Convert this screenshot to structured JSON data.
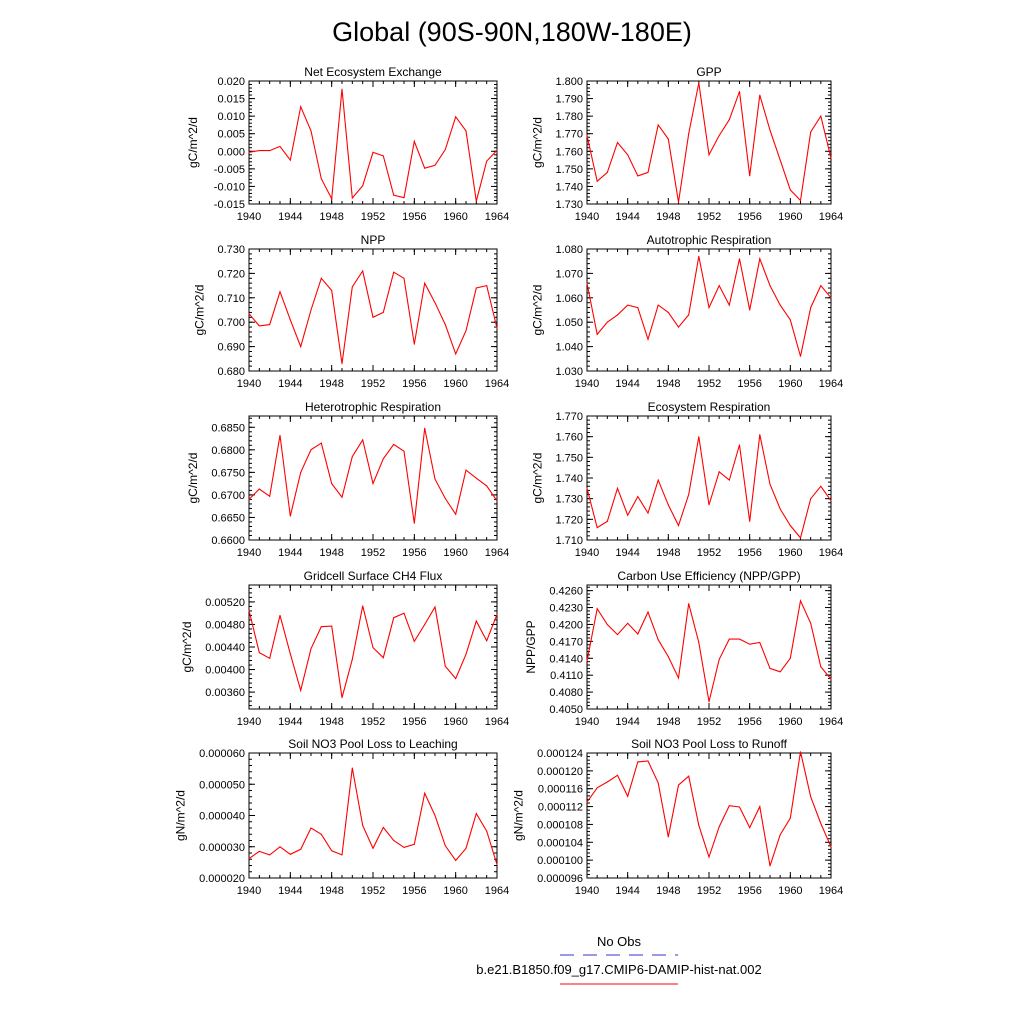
{
  "figure_title": "Global (90S-90N,180W-180E)",
  "legend": {
    "obs_label": "No Obs",
    "obs_color": "#3333cc",
    "model_label": "b.e21.B1850.f09_g17.CMIP6-DAMIP-hist-nat.002",
    "model_color": "#ff0000"
  },
  "chart_data": [
    {
      "type": "line",
      "title": "Net Ecosystem Exchange",
      "xlabel": "",
      "ylabel": "gC/m^2/d",
      "xlim": [
        1940,
        1964
      ],
      "ylim": [
        -0.015,
        0.02
      ],
      "yticks": [
        "-0.015",
        "-0.010",
        "-0.005",
        "0.000",
        "0.005",
        "0.010",
        "0.015",
        "0.020"
      ],
      "xticks": [
        "1940",
        "1944",
        "1948",
        "1952",
        "1956",
        "1960",
        "1964"
      ],
      "series": [
        {
          "color": "#ff0000",
          "x": [
            1940,
            1941,
            1942,
            1943,
            1944,
            1945,
            1946,
            1947,
            1948,
            1949,
            1950,
            1951,
            1952,
            1953,
            1954,
            1955,
            1956,
            1957,
            1958,
            1959,
            1960,
            1961,
            1962,
            1963,
            1964
          ],
          "values": [
            -0.0003,
            0.0002,
            0.0002,
            0.0014,
            -0.0025,
            0.0127,
            0.0058,
            -0.0078,
            -0.0135,
            0.0177,
            -0.0133,
            -0.0098,
            -0.0003,
            -0.0013,
            -0.0125,
            -0.0132,
            0.0028,
            -0.0048,
            -0.004,
            0.0005,
            0.0098,
            0.0058,
            -0.0142,
            -0.0028,
            0.0003
          ]
        }
      ]
    },
    {
      "type": "line",
      "title": "GPP",
      "xlabel": "",
      "ylabel": "gC/m^2/d",
      "xlim": [
        1940,
        1964
      ],
      "ylim": [
        1.73,
        1.8
      ],
      "yticks": [
        "1.730",
        "1.740",
        "1.750",
        "1.760",
        "1.770",
        "1.780",
        "1.790",
        "1.800"
      ],
      "xticks": [
        "1940",
        "1944",
        "1948",
        "1952",
        "1956",
        "1960",
        "1964"
      ],
      "series": [
        {
          "color": "#ff0000",
          "x": [
            1940,
            1941,
            1942,
            1943,
            1944,
            1945,
            1946,
            1947,
            1948,
            1949,
            1950,
            1951,
            1952,
            1953,
            1954,
            1955,
            1956,
            1957,
            1958,
            1959,
            1960,
            1961,
            1962,
            1963,
            1964
          ],
          "values": [
            1.769,
            1.743,
            1.748,
            1.765,
            1.758,
            1.746,
            1.748,
            1.775,
            1.767,
            1.731,
            1.77,
            1.799,
            1.758,
            1.769,
            1.778,
            1.794,
            1.746,
            1.792,
            1.772,
            1.755,
            1.738,
            1.732,
            1.771,
            1.78,
            1.756
          ]
        }
      ]
    },
    {
      "type": "line",
      "title": "NPP",
      "xlabel": "",
      "ylabel": "gC/m^2/d",
      "xlim": [
        1940,
        1964
      ],
      "ylim": [
        0.68,
        0.73
      ],
      "yticks": [
        "0.680",
        "0.690",
        "0.700",
        "0.710",
        "0.720",
        "0.730"
      ],
      "xticks": [
        "1940",
        "1944",
        "1948",
        "1952",
        "1956",
        "1960",
        "1964"
      ],
      "series": [
        {
          "color": "#ff0000",
          "x": [
            1940,
            1941,
            1942,
            1943,
            1944,
            1945,
            1946,
            1947,
            1948,
            1949,
            1950,
            1951,
            1952,
            1953,
            1954,
            1955,
            1956,
            1957,
            1958,
            1959,
            1960,
            1961,
            1962,
            1963,
            1964
          ],
          "values": [
            0.7035,
            0.6985,
            0.699,
            0.7125,
            0.701,
            0.69,
            0.705,
            0.718,
            0.713,
            0.683,
            0.7145,
            0.721,
            0.702,
            0.704,
            0.7205,
            0.718,
            0.691,
            0.716,
            0.708,
            0.699,
            0.687,
            0.6965,
            0.714,
            0.715,
            0.6975
          ]
        }
      ]
    },
    {
      "type": "line",
      "title": "Autotrophic Respiration",
      "xlabel": "",
      "ylabel": "gC/m^2/d",
      "xlim": [
        1940,
        1964
      ],
      "ylim": [
        1.03,
        1.08
      ],
      "yticks": [
        "1.030",
        "1.040",
        "1.050",
        "1.060",
        "1.070",
        "1.080"
      ],
      "xticks": [
        "1940",
        "1944",
        "1948",
        "1952",
        "1956",
        "1960",
        "1964"
      ],
      "series": [
        {
          "color": "#ff0000",
          "x": [
            1940,
            1941,
            1942,
            1943,
            1944,
            1945,
            1946,
            1947,
            1948,
            1949,
            1950,
            1951,
            1952,
            1953,
            1954,
            1955,
            1956,
            1957,
            1958,
            1959,
            1960,
            1961,
            1962,
            1963,
            1964
          ],
          "values": [
            1.066,
            1.045,
            1.05,
            1.053,
            1.057,
            1.056,
            1.043,
            1.057,
            1.054,
            1.048,
            1.053,
            1.077,
            1.056,
            1.065,
            1.057,
            1.076,
            1.055,
            1.076,
            1.065,
            1.057,
            1.051,
            1.036,
            1.056,
            1.065,
            1.06
          ]
        }
      ]
    },
    {
      "type": "line",
      "title": "Heterotrophic Respiration",
      "xlabel": "",
      "ylabel": "gC/m^2/d",
      "xlim": [
        1940,
        1964
      ],
      "ylim": [
        0.66,
        0.6875
      ],
      "yticks": [
        "0.6600",
        "0.6650",
        "0.6700",
        "0.6750",
        "0.6800",
        "0.6850"
      ],
      "xticks": [
        "1940",
        "1944",
        "1948",
        "1952",
        "1956",
        "1960",
        "1964"
      ],
      "series": [
        {
          "color": "#ff0000",
          "x": [
            1940,
            1941,
            1942,
            1943,
            1944,
            1945,
            1946,
            1947,
            1948,
            1949,
            1950,
            1951,
            1952,
            1953,
            1954,
            1955,
            1956,
            1957,
            1958,
            1959,
            1960,
            1961,
            1962,
            1963,
            1964
          ],
          "values": [
            0.669,
            0.6713,
            0.6697,
            0.6832,
            0.6653,
            0.675,
            0.68,
            0.6815,
            0.6725,
            0.6695,
            0.6785,
            0.6822,
            0.6725,
            0.678,
            0.6812,
            0.6797,
            0.6637,
            0.6848,
            0.6735,
            0.6692,
            0.6657,
            0.6755,
            0.6737,
            0.672,
            0.6687
          ]
        }
      ]
    },
    {
      "type": "line",
      "title": "Ecosystem Respiration",
      "xlabel": "",
      "ylabel": "gC/m^2/d",
      "xlim": [
        1940,
        1964
      ],
      "ylim": [
        1.71,
        1.77
      ],
      "yticks": [
        "1.710",
        "1.720",
        "1.730",
        "1.740",
        "1.750",
        "1.760",
        "1.770"
      ],
      "xticks": [
        "1940",
        "1944",
        "1948",
        "1952",
        "1956",
        "1960",
        "1964"
      ],
      "series": [
        {
          "color": "#ff0000",
          "x": [
            1940,
            1941,
            1942,
            1943,
            1944,
            1945,
            1946,
            1947,
            1948,
            1949,
            1950,
            1951,
            1952,
            1953,
            1954,
            1955,
            1956,
            1957,
            1958,
            1959,
            1960,
            1961,
            1962,
            1963,
            1964
          ],
          "values": [
            1.735,
            1.716,
            1.719,
            1.735,
            1.722,
            1.731,
            1.723,
            1.739,
            1.727,
            1.717,
            1.732,
            1.76,
            1.727,
            1.743,
            1.739,
            1.756,
            1.719,
            1.761,
            1.737,
            1.725,
            1.717,
            1.711,
            1.73,
            1.736,
            1.729
          ]
        }
      ]
    },
    {
      "type": "line",
      "title": "Gridcell Surface CH4 Flux",
      "xlabel": "",
      "ylabel": "gC/m^2/d",
      "xlim": [
        1940,
        1964
      ],
      "ylim": [
        0.0033,
        0.0055
      ],
      "yticks": [
        "0.00360",
        "0.00400",
        "0.00440",
        "0.00480",
        "0.00520"
      ],
      "xticks": [
        "1940",
        "1944",
        "1948",
        "1952",
        "1956",
        "1960",
        "1964"
      ],
      "series": [
        {
          "color": "#ff0000",
          "x": [
            1940,
            1941,
            1942,
            1943,
            1944,
            1945,
            1946,
            1947,
            1948,
            1949,
            1950,
            1951,
            1952,
            1953,
            1954,
            1955,
            1956,
            1957,
            1958,
            1959,
            1960,
            1961,
            1962,
            1963,
            1964
          ],
          "values": [
            0.00505,
            0.0043,
            0.0042,
            0.00496,
            0.00428,
            0.00363,
            0.00437,
            0.00476,
            0.00477,
            0.0035,
            0.00418,
            0.00513,
            0.00439,
            0.00421,
            0.00492,
            0.005,
            0.0045,
            0.0048,
            0.00511,
            0.00406,
            0.00384,
            0.00427,
            0.00486,
            0.00451,
            0.00498
          ]
        }
      ]
    },
    {
      "type": "line",
      "title": "Carbon Use Efficiency (NPP/GPP)",
      "xlabel": "",
      "ylabel": "NPP/GPP",
      "xlim": [
        1940,
        1964
      ],
      "ylim": [
        0.405,
        0.427
      ],
      "yticks": [
        "0.4050",
        "0.4080",
        "0.4110",
        "0.4140",
        "0.4170",
        "0.4200",
        "0.4230",
        "0.4260"
      ],
      "xticks": [
        "1940",
        "1944",
        "1948",
        "1952",
        "1956",
        "1960",
        "1964"
      ],
      "series": [
        {
          "color": "#ff0000",
          "x": [
            1940,
            1941,
            1942,
            1943,
            1944,
            1945,
            1946,
            1947,
            1948,
            1949,
            1950,
            1951,
            1952,
            1953,
            1954,
            1955,
            1956,
            1957,
            1958,
            1959,
            1960,
            1961,
            1962,
            1963,
            1964
          ],
          "values": [
            0.4135,
            0.4228,
            0.42,
            0.4182,
            0.4202,
            0.4183,
            0.4222,
            0.4173,
            0.4143,
            0.4105,
            0.4237,
            0.4168,
            0.4063,
            0.4138,
            0.4174,
            0.4174,
            0.4165,
            0.4168,
            0.4122,
            0.4116,
            0.414,
            0.4242,
            0.4202,
            0.4125,
            0.4103
          ]
        }
      ]
    },
    {
      "type": "line",
      "title": "Soil NO3 Pool Loss to Leaching",
      "xlabel": "",
      "ylabel": "gN/m^2/d",
      "xlim": [
        1940,
        1964
      ],
      "ylim": [
        2e-05,
        6e-05
      ],
      "yticks": [
        "0.000020",
        "0.000030",
        "0.000040",
        "0.000050",
        "0.000060"
      ],
      "xticks": [
        "1940",
        "1944",
        "1948",
        "1952",
        "1956",
        "1960",
        "1964"
      ],
      "series": [
        {
          "color": "#ff0000",
          "x": [
            1940,
            1941,
            1942,
            1943,
            1944,
            1945,
            1946,
            1947,
            1948,
            1949,
            1950,
            1951,
            1952,
            1953,
            1954,
            1955,
            1956,
            1957,
            1958,
            1959,
            1960,
            1961,
            1962,
            1963,
            1964
          ],
          "values": [
            2.62e-05,
            2.85e-05,
            2.74e-05,
            3e-05,
            2.76e-05,
            2.92e-05,
            3.6e-05,
            3.4e-05,
            2.87e-05,
            2.74e-05,
            5.52e-05,
            3.68e-05,
            2.95e-05,
            3.62e-05,
            3.2e-05,
            2.98e-05,
            3.08e-05,
            4.71e-05,
            4e-05,
            3.03e-05,
            2.56e-05,
            2.95e-05,
            4.06e-05,
            3.5e-05,
            2.43e-05
          ]
        }
      ]
    },
    {
      "type": "line",
      "title": "Soil NO3 Pool Loss to Runoff",
      "xlabel": "",
      "ylabel": "gN/m^2/d",
      "xlim": [
        1940,
        1964
      ],
      "ylim": [
        9.6e-05,
        0.000124
      ],
      "yticks": [
        "0.000096",
        "0.000100",
        "0.000104",
        "0.000108",
        "0.000112",
        "0.000116",
        "0.000120",
        "0.000124"
      ],
      "xticks": [
        "1940",
        "1944",
        "1948",
        "1952",
        "1956",
        "1960",
        "1964"
      ],
      "series": [
        {
          "color": "#ff0000",
          "x": [
            1940,
            1941,
            1942,
            1943,
            1944,
            1945,
            1946,
            1947,
            1948,
            1949,
            1950,
            1951,
            1952,
            1953,
            1954,
            1955,
            1956,
            1957,
            1958,
            1959,
            1960,
            1961,
            1962,
            1963,
            1964
          ],
          "values": [
            0.000113,
            0.0001162,
            0.0001175,
            0.000119,
            0.0001143,
            0.000122,
            0.0001222,
            0.0001173,
            0.0001052,
            0.0001168,
            0.0001188,
            0.0001078,
            0.0001007,
            0.0001075,
            0.0001122,
            0.0001119,
            0.0001073,
            0.000112,
            9.87e-05,
            0.0001057,
            0.0001094,
            0.0001243,
            0.0001142,
            0.0001082,
            0.000103
          ]
        }
      ]
    }
  ]
}
